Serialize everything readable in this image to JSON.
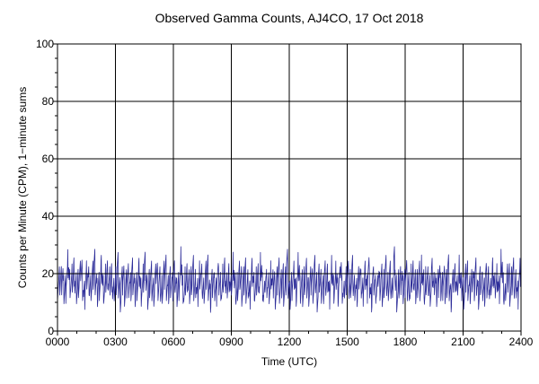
{
  "chart_data": {
    "type": "line",
    "title": "Observed Gamma Counts, AJ4CO, 17 Oct 2018",
    "xlabel": "Time (UTC)",
    "ylabel": "Counts per Minute (CPM), 1−minute sums",
    "x_ticks": [
      "0000",
      "0300",
      "0600",
      "0900",
      "1200",
      "1500",
      "1800",
      "2100",
      "2400"
    ],
    "y_ticks": [
      0,
      20,
      40,
      60,
      80,
      100
    ],
    "xlim": [
      0,
      24
    ],
    "ylim": [
      0,
      100
    ],
    "grid": true,
    "reference_line": 20,
    "colors": {
      "series": "#2f2f9a",
      "grid": "#000000",
      "reference": "#000000"
    },
    "series": [
      {
        "sampling": "1 minute",
        "values": [
          16,
          17,
          18,
          20,
          14,
          15,
          19,
          23,
          17,
          16,
          18,
          21,
          15,
          14,
          17,
          19,
          22,
          16,
          12,
          18,
          20,
          17,
          15,
          16,
          19,
          24,
          18,
          13,
          16,
          17,
          21,
          15,
          14,
          18,
          20,
          16,
          17,
          19,
          13,
          15,
          18,
          22,
          16,
          12,
          17,
          20,
          14,
          16,
          19,
          17,
          15,
          21,
          18,
          13,
          16,
          17,
          20,
          14,
          15,
          18,
          23,
          16,
          12,
          17,
          19,
          15,
          14,
          18,
          21,
          16,
          17,
          13,
          15,
          19,
          22,
          16,
          14,
          18,
          17,
          15,
          20,
          17,
          13,
          16,
          18,
          24,
          15,
          12,
          17,
          19,
          16,
          14,
          18,
          21,
          15,
          17,
          13,
          16,
          20,
          18,
          14,
          15,
          19,
          22,
          16,
          11,
          17,
          18,
          15,
          14,
          20,
          17,
          16,
          13,
          18,
          21,
          15,
          16,
          19,
          14,
          17,
          23,
          15,
          12,
          16,
          19,
          18,
          14,
          17,
          21,
          15,
          16,
          13,
          18,
          20,
          16,
          14,
          17,
          19,
          15,
          22,
          16,
          12,
          18,
          17,
          15,
          14,
          20,
          16,
          18,
          13,
          17,
          21,
          15,
          16,
          19,
          14,
          17,
          24,
          15,
          12,
          16,
          18,
          19,
          14,
          17,
          22,
          15,
          16,
          13,
          18,
          20,
          16,
          14,
          17,
          19,
          15,
          21,
          16,
          12,
          18,
          17,
          15,
          14,
          20,
          16,
          18,
          13,
          17,
          21,
          15,
          16,
          19,
          14,
          17,
          23,
          15,
          12,
          16,
          18,
          19,
          14,
          17,
          21,
          15,
          16,
          13,
          18,
          20,
          16,
          14,
          17,
          19,
          15,
          22,
          16,
          12,
          18,
          17,
          15,
          14,
          20,
          16,
          18,
          13,
          17,
          21,
          15,
          16,
          19,
          14,
          17,
          24,
          15,
          12,
          16,
          18,
          19,
          14,
          17,
          21,
          15,
          16,
          13,
          18,
          20,
          16,
          14,
          17,
          19,
          15,
          22,
          16,
          12,
          18,
          17,
          15,
          14,
          20,
          16,
          18,
          13,
          17,
          21,
          15,
          16,
          19,
          14,
          17,
          23,
          15,
          12,
          16,
          18,
          19,
          14,
          17,
          22,
          15,
          16,
          13,
          18,
          20,
          16,
          14,
          17,
          19,
          15,
          21,
          16,
          12,
          18,
          17,
          15,
          14,
          20,
          16,
          18,
          13,
          17,
          21,
          15,
          16,
          19,
          14,
          17,
          24,
          15,
          12,
          16,
          18,
          19,
          14,
          17,
          21,
          15,
          16,
          13,
          18,
          20
        ]
      }
    ]
  }
}
